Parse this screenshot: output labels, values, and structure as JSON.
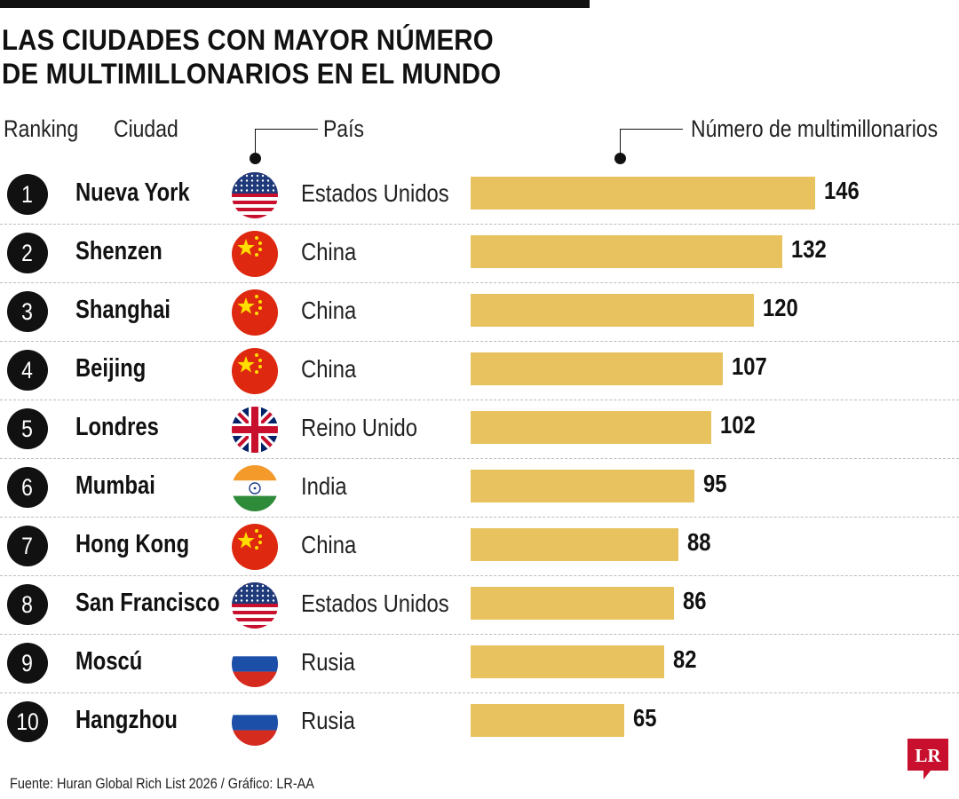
{
  "title_lines": [
    "LAS CIUDADES CON MAYOR NÚMERO",
    "DE MULTIMILLONARIOS EN EL MUNDO"
  ],
  "headers": {
    "ranking": "Ranking",
    "ciudad": "Ciudad",
    "pais": "País",
    "numero": "Número de multimillonarios"
  },
  "colors": {
    "bar": "#e8c25e",
    "badge": "#111111",
    "logo": "#c8102e"
  },
  "chart_data": {
    "type": "bar",
    "orientation": "horizontal",
    "title": "LAS CIUDADES CON MAYOR NÚMERO DE MULTIMILLONARIOS EN EL MUNDO",
    "xlabel": "Número de multimillonarios",
    "categories": [
      "Nueva York",
      "Shenzen",
      "Shanghai",
      "Beijing",
      "Londres",
      "Mumbai",
      "Hong Kong",
      "San Francisco",
      "Moscú",
      "Hangzhou"
    ],
    "values": [
      146,
      132,
      120,
      107,
      102,
      95,
      88,
      86,
      82,
      65
    ],
    "xlim": [
      0,
      146
    ],
    "grid": false,
    "rows": [
      {
        "rank": "1",
        "city": "Nueva York",
        "country": "Estados Unidos",
        "flag": "usa-flag-icon",
        "value": 146
      },
      {
        "rank": "2",
        "city": "Shenzen",
        "country": "China",
        "flag": "china-flag-icon",
        "value": 132
      },
      {
        "rank": "3",
        "city": "Shanghai",
        "country": "China",
        "flag": "china-flag-icon",
        "value": 120
      },
      {
        "rank": "4",
        "city": "Beijing",
        "country": "China",
        "flag": "china-flag-icon",
        "value": 107
      },
      {
        "rank": "5",
        "city": "Londres",
        "country": "Reino Unido",
        "flag": "uk-flag-icon",
        "value": 102
      },
      {
        "rank": "6",
        "city": "Mumbai",
        "country": "India",
        "flag": "india-flag-icon",
        "value": 95
      },
      {
        "rank": "7",
        "city": "Hong Kong",
        "country": "China",
        "flag": "china-flag-icon",
        "value": 88
      },
      {
        "rank": "8",
        "city": "San Francisco",
        "country": "Estados Unidos",
        "flag": "usa-flag-icon",
        "value": 86
      },
      {
        "rank": "9",
        "city": "Moscú",
        "country": "Rusia",
        "flag": "russia-flag-icon",
        "value": 82
      },
      {
        "rank": "10",
        "city": "Hangzhou",
        "country": "Rusia",
        "flag": "russia-flag-icon",
        "value": 65
      }
    ]
  },
  "source": "Fuente: Huran Global Rich List 2026 / Gráfico: LR-AA",
  "logo_text": "LR"
}
